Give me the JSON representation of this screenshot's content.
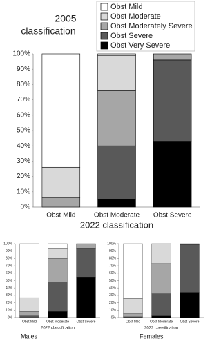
{
  "chart_data": [
    {
      "type": "bar",
      "stacked": true,
      "legend": true,
      "legend_title_lines": [
        "2005",
        "classification"
      ],
      "xlabel": "2022 classification",
      "categories": [
        "Obst Mild",
        "Obst Moderate",
        "Obst Severe"
      ],
      "series": [
        {
          "name": "Obst Mild",
          "color": "#ffffff",
          "values": [
            74,
            1,
            0
          ]
        },
        {
          "name": "Obst Moderate",
          "color": "#d9d9d9",
          "values": [
            20,
            23,
            0
          ]
        },
        {
          "name": "Obst Moderately Severe",
          "color": "#a6a6a6",
          "values": [
            6,
            36,
            4
          ]
        },
        {
          "name": "Obst Severe",
          "color": "#595959",
          "values": [
            0,
            35,
            53
          ]
        },
        {
          "name": "Obst Very Severe",
          "color": "#000000",
          "values": [
            0,
            5,
            43
          ]
        }
      ],
      "ylim": [
        0,
        100
      ],
      "yticks": [
        {
          "value": 0,
          "label": "0%"
        },
        {
          "value": 10,
          "label": "10%"
        },
        {
          "value": 20,
          "label": "20%"
        },
        {
          "value": 30,
          "label": "30%"
        },
        {
          "value": 40,
          "label": "40%"
        },
        {
          "value": 50,
          "label": "50%"
        },
        {
          "value": 60,
          "label": "60%"
        },
        {
          "value": 70,
          "label": "70%"
        },
        {
          "value": 80,
          "label": "80%"
        },
        {
          "value": 90,
          "label": "90%"
        },
        {
          "value": 100,
          "label": "100%"
        }
      ]
    },
    {
      "type": "bar",
      "stacked": true,
      "legend": false,
      "caption": "Males",
      "xlabel": "2022 classification",
      "categories": [
        "Obst Mild",
        "Obst Moderate",
        "Obst Severe"
      ],
      "series": [
        {
          "color": "#ffffff",
          "values": [
            73,
            6,
            0
          ]
        },
        {
          "color": "#d9d9d9",
          "values": [
            19,
            14,
            0
          ]
        },
        {
          "color": "#a6a6a6",
          "values": [
            6,
            32,
            6
          ]
        },
        {
          "color": "#595959",
          "values": [
            2,
            40,
            40
          ]
        },
        {
          "color": "#000000",
          "values": [
            0,
            8,
            54
          ]
        }
      ],
      "ylim": [
        0,
        100
      ],
      "yticks": [
        {
          "value": 0,
          "label": "0%"
        },
        {
          "value": 10,
          "label": "10%"
        },
        {
          "value": 20,
          "label": "20%"
        },
        {
          "value": 30,
          "label": "30%"
        },
        {
          "value": 40,
          "label": "40%"
        },
        {
          "value": 50,
          "label": "50%"
        },
        {
          "value": 60,
          "label": "60%"
        },
        {
          "value": 70,
          "label": "70%"
        },
        {
          "value": 80,
          "label": "80%"
        },
        {
          "value": 90,
          "label": "90%"
        },
        {
          "value": 100,
          "label": "100%"
        }
      ]
    },
    {
      "type": "bar",
      "stacked": true,
      "legend": false,
      "caption": "Females",
      "xlabel": "2022 classification",
      "categories": [
        "Obst Mild",
        "Obst Moderate",
        "Obst Severe"
      ],
      "series": [
        {
          "color": "#ffffff",
          "values": [
            74,
            0,
            0
          ]
        },
        {
          "color": "#d9d9d9",
          "values": [
            21,
            27,
            0
          ]
        },
        {
          "color": "#a6a6a6",
          "values": [
            4,
            41,
            1
          ]
        },
        {
          "color": "#595959",
          "values": [
            1,
            30,
            65
          ]
        },
        {
          "color": "#000000",
          "values": [
            0,
            2,
            34
          ]
        }
      ],
      "ylim": [
        0,
        100
      ],
      "yticks": [
        {
          "value": 0,
          "label": "0%"
        },
        {
          "value": 10,
          "label": "10%"
        },
        {
          "value": 20,
          "label": "20%"
        },
        {
          "value": 30,
          "label": "30%"
        },
        {
          "value": 40,
          "label": "40%"
        },
        {
          "value": 50,
          "label": "50%"
        },
        {
          "value": 60,
          "label": "60%"
        },
        {
          "value": 70,
          "label": "70%"
        },
        {
          "value": 80,
          "label": "80%"
        },
        {
          "value": 90,
          "label": "90%"
        },
        {
          "value": 100,
          "label": "100%"
        }
      ]
    }
  ]
}
